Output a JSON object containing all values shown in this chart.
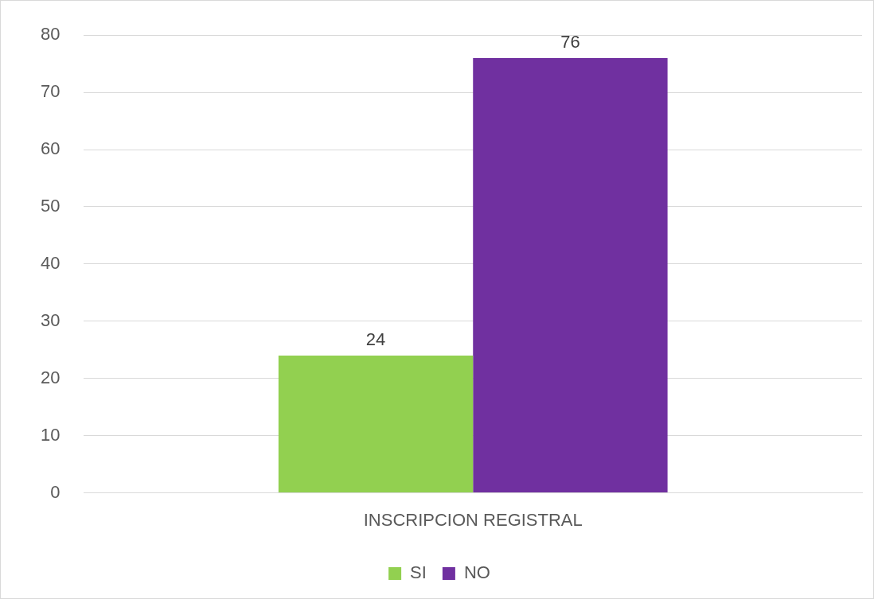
{
  "chart_data": {
    "type": "bar",
    "categories": [
      "INSCRIPCION REGISTRAL"
    ],
    "series": [
      {
        "name": "SI",
        "color": "#92d050",
        "values": [
          24
        ]
      },
      {
        "name": "NO",
        "color": "#7030a0",
        "values": [
          76
        ]
      }
    ],
    "ylim": [
      0,
      80
    ],
    "yticks": [
      0,
      10,
      20,
      30,
      40,
      50,
      60,
      70,
      80
    ],
    "grid": "y",
    "legend": "bottom",
    "data_labels": true
  }
}
